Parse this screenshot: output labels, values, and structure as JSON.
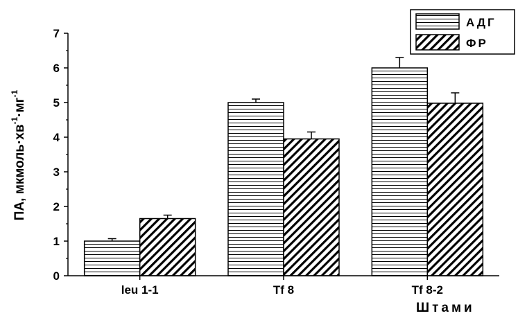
{
  "chart_data": {
    "type": "bar",
    "categories": [
      "leu 1-1",
      "Tf 8",
      "Tf 8-2"
    ],
    "series": [
      {
        "name": "АДГ",
        "values": [
          1.0,
          5.0,
          6.0
        ],
        "errors": [
          0.07,
          0.1,
          0.3
        ],
        "pattern": "horizontal-lines"
      },
      {
        "name": "ФР",
        "values": [
          1.65,
          3.95,
          4.98
        ],
        "errors": [
          0.1,
          0.2,
          0.3
        ],
        "pattern": "diagonal-lines"
      }
    ],
    "xlabel": "Штами",
    "ylabel": "ПА, мкмоль·хв⁻¹·мг⁻¹",
    "ylabel_parts": {
      "main": "ПА, мкмоль·хв",
      "sup1": "-1",
      "mid": "·мг",
      "sup2": "-1"
    },
    "ylim": [
      0,
      7
    ],
    "yticks": [
      "0",
      "1",
      "2",
      "3",
      "4",
      "5",
      "6",
      "7"
    ],
    "legend_position": "top-right",
    "grid": false
  }
}
